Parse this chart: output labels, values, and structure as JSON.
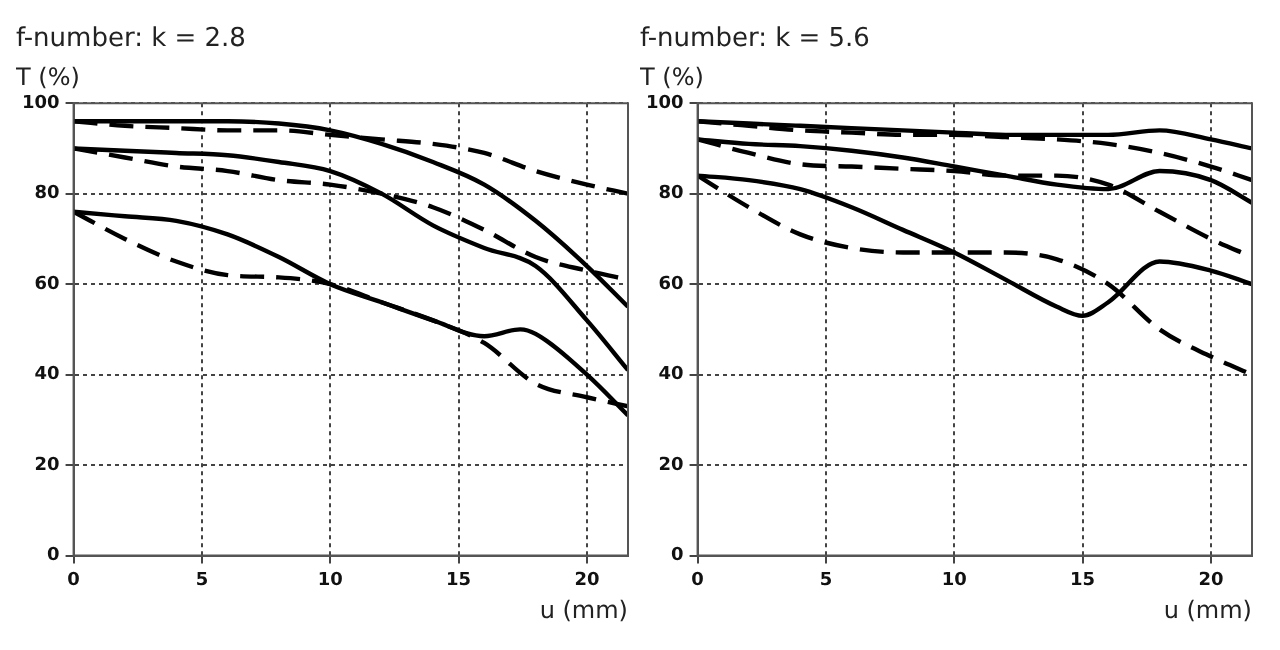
{
  "chart_data": [
    {
      "type": "line",
      "title": "f-number: k = 2.8",
      "ylabel": "T (%)",
      "xlabel": "u (mm)",
      "x": [
        0,
        2,
        4,
        6,
        8,
        10,
        12,
        14,
        16,
        18,
        20,
        21.6
      ],
      "xlim": [
        0,
        21.6
      ],
      "xticks": [
        0,
        5,
        10,
        15,
        20
      ],
      "ylim": [
        0,
        100
      ],
      "yticks": [
        0,
        20,
        40,
        60,
        80,
        100
      ],
      "grid": true,
      "marker": "none",
      "series": [
        {
          "color": "#000000",
          "line_style": "solid",
          "values": [
            96,
            96,
            96,
            96,
            95.5,
            94,
            91,
            87,
            82,
            74,
            64,
            55
          ]
        },
        {
          "color": "#000000",
          "line_style": "dashed",
          "values": [
            96,
            95,
            94.5,
            94,
            94,
            93,
            92,
            91,
            89,
            85,
            82,
            80
          ]
        },
        {
          "color": "#000000",
          "line_style": "solid",
          "values": [
            90,
            89.5,
            89,
            88.5,
            87,
            85,
            80,
            73,
            68,
            64,
            52,
            41
          ]
        },
        {
          "color": "#000000",
          "line_style": "dashed",
          "values": [
            90,
            88,
            86,
            85,
            83,
            82,
            80,
            77,
            72,
            66,
            63,
            61
          ]
        },
        {
          "color": "#000000",
          "line_style": "solid",
          "x": [
            0,
            2,
            4,
            6,
            8,
            10,
            12,
            14,
            16,
            17.4,
            18,
            20,
            21.6
          ],
          "values": [
            76,
            75,
            74,
            71,
            66,
            60,
            56,
            52,
            48.5,
            50,
            49,
            40,
            31
          ]
        },
        {
          "color": "#000000",
          "line_style": "dashed",
          "values": [
            76,
            70,
            65,
            62,
            61.5,
            60,
            56,
            52,
            47,
            38,
            35,
            33
          ]
        }
      ]
    },
    {
      "type": "line",
      "title": "f-number: k = 5.6",
      "ylabel": "T (%)",
      "xlabel": "u (mm)",
      "x": [
        0,
        2,
        4,
        6,
        8,
        10,
        12,
        14,
        16,
        18,
        20,
        21.6
      ],
      "xlim": [
        0,
        21.6
      ],
      "xticks": [
        0,
        5,
        10,
        15,
        20
      ],
      "ylim": [
        0,
        100
      ],
      "yticks": [
        0,
        20,
        40,
        60,
        80,
        100
      ],
      "grid": true,
      "marker": "none",
      "series": [
        {
          "color": "#000000",
          "line_style": "solid",
          "values": [
            96,
            95.5,
            95,
            94.5,
            94,
            93.5,
            93,
            93,
            93,
            94,
            92,
            90
          ]
        },
        {
          "color": "#000000",
          "line_style": "dashed",
          "values": [
            96,
            95,
            94,
            93.5,
            93,
            93,
            92.5,
            92,
            91,
            89,
            86,
            83
          ]
        },
        {
          "color": "#000000",
          "line_style": "solid",
          "values": [
            92,
            91,
            90.5,
            89.5,
            88,
            86,
            84,
            82,
            81,
            85,
            83,
            78
          ]
        },
        {
          "color": "#000000",
          "line_style": "dashed",
          "values": [
            92,
            89,
            86.5,
            86,
            85.5,
            85,
            84,
            84,
            82,
            76,
            70,
            66
          ]
        },
        {
          "color": "#000000",
          "line_style": "solid",
          "x": [
            0,
            2,
            4,
            6,
            8,
            10,
            12,
            14,
            15,
            16,
            18,
            20,
            21.6
          ],
          "values": [
            84,
            83,
            81,
            77,
            72,
            67,
            61,
            55,
            53,
            56,
            65,
            63,
            60
          ]
        },
        {
          "color": "#000000",
          "line_style": "dashed",
          "values": [
            84,
            77,
            71,
            68,
            67,
            67,
            67,
            65.5,
            60,
            50,
            44,
            40
          ]
        }
      ]
    }
  ]
}
